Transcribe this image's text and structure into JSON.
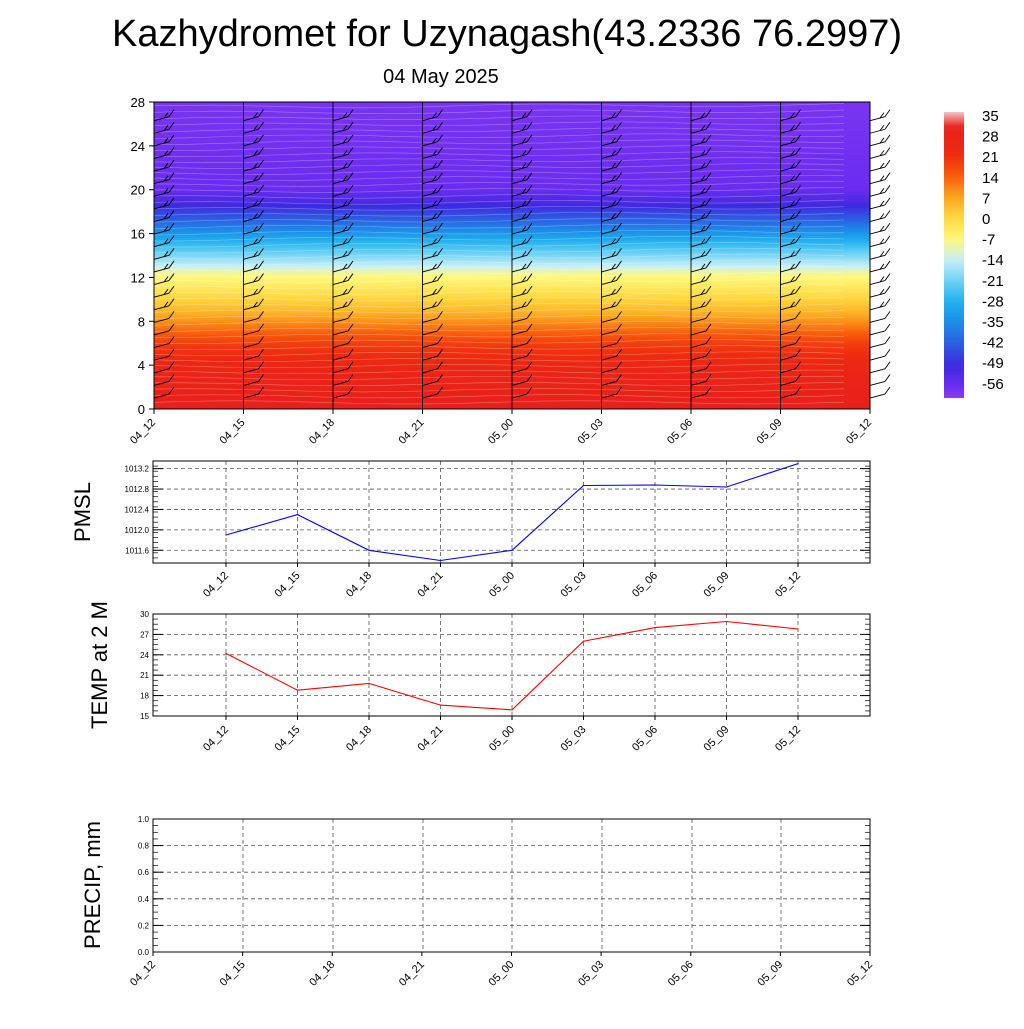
{
  "header": {
    "title": "Kazhydromet for Uzynagash(43.2336 76.2997)",
    "date": "04 May 2025"
  },
  "chart_data": [
    {
      "type": "heatmap",
      "id": "cross-section",
      "x_ticks": [
        "04_12",
        "04_15",
        "04_18",
        "04_21",
        "05_00",
        "05_03",
        "05_06",
        "05_09",
        "05_12"
      ],
      "y_ticks": [
        0,
        4,
        8,
        12,
        16,
        20,
        24,
        28
      ],
      "ylim": [
        0,
        28
      ],
      "colorbar": {
        "labels": [
          "35",
          "28",
          "21",
          "14",
          "7",
          "0",
          "-7",
          "-14",
          "-21",
          "-28",
          "-35",
          "-42",
          "-49",
          "-56"
        ],
        "stops": [
          {
            "value": 35,
            "color": "#f4c2c4"
          },
          {
            "value": 30,
            "color": "#e8201c"
          },
          {
            "value": 21,
            "color": "#ee2a10"
          },
          {
            "value": 14,
            "color": "#fa5a0a"
          },
          {
            "value": 7,
            "color": "#fca21e"
          },
          {
            "value": 0,
            "color": "#fed740"
          },
          {
            "value": -7,
            "color": "#fff87a"
          },
          {
            "value": -14,
            "color": "#c9f0f6"
          },
          {
            "value": -21,
            "color": "#6fd2f5"
          },
          {
            "value": -28,
            "color": "#1fb2ef"
          },
          {
            "value": -35,
            "color": "#1c8ce8"
          },
          {
            "value": -42,
            "color": "#2d5ee2"
          },
          {
            "value": -49,
            "color": "#3e2ae0"
          },
          {
            "value": -56,
            "color": "#6a2cf0"
          },
          {
            "value": -60,
            "color": "#8a3cf2"
          }
        ]
      },
      "vertical_profile": [
        {
          "level": 0,
          "value": 30
        },
        {
          "level": 3,
          "value": 26
        },
        {
          "level": 6,
          "value": 18
        },
        {
          "level": 9,
          "value": 4
        },
        {
          "level": 12.3,
          "value": -8
        },
        {
          "level": 13,
          "value": -14
        },
        {
          "level": 15,
          "value": -26
        },
        {
          "level": 17,
          "value": -40
        },
        {
          "level": 18.5,
          "value": -49
        },
        {
          "level": 20,
          "value": -56
        },
        {
          "level": 24,
          "value": -57
        },
        {
          "level": 28,
          "value": -58
        }
      ]
    },
    {
      "type": "line",
      "id": "pmsl",
      "ylabel": "PMSL",
      "categories": [
        "04_12",
        "04_15",
        "04_18",
        "04_21",
        "05_00",
        "05_03",
        "05_06",
        "05_09",
        "05_12"
      ],
      "series": [
        {
          "values": [
            1011.9,
            1012.3,
            1011.6,
            1011.4,
            1011.6,
            1012.87,
            1012.88,
            1012.84,
            1013.3
          ],
          "color": "#0000ff"
        }
      ],
      "y_ticks": [
        "1011.6",
        "1012.0",
        "1012.4",
        "1012.8",
        "1013.2"
      ],
      "ylim": [
        1011.35,
        1013.35
      ],
      "grid": true
    },
    {
      "type": "line",
      "id": "temp",
      "ylabel": "TEMP at 2 M",
      "categories": [
        "04_12",
        "04_15",
        "04_18",
        "04_21",
        "05_00",
        "05_03",
        "05_06",
        "05_09",
        "05_12"
      ],
      "series": [
        {
          "values": [
            24.2,
            18.8,
            19.8,
            16.6,
            15.9,
            26.0,
            28.0,
            28.9,
            27.8
          ],
          "color": "#ff0000"
        }
      ],
      "y_ticks": [
        "15",
        "18",
        "21",
        "24",
        "27",
        "30"
      ],
      "ylim": [
        15,
        30
      ],
      "grid": true
    },
    {
      "type": "line",
      "id": "precip",
      "ylabel": "PRECIP, mm",
      "categories": [
        "04_12",
        "04_15",
        "04_18",
        "04_21",
        "05_00",
        "05_03",
        "05_06",
        "05_09",
        "05_12"
      ],
      "series": [
        {
          "values": [
            0,
            0,
            0,
            0,
            0,
            0,
            0,
            0,
            0
          ],
          "color": "#2e7d32"
        }
      ],
      "y_ticks": [
        "0.0",
        "0.2",
        "0.4",
        "0.6",
        "0.8",
        "1.0"
      ],
      "ylim": [
        0,
        1
      ],
      "grid": true
    }
  ]
}
